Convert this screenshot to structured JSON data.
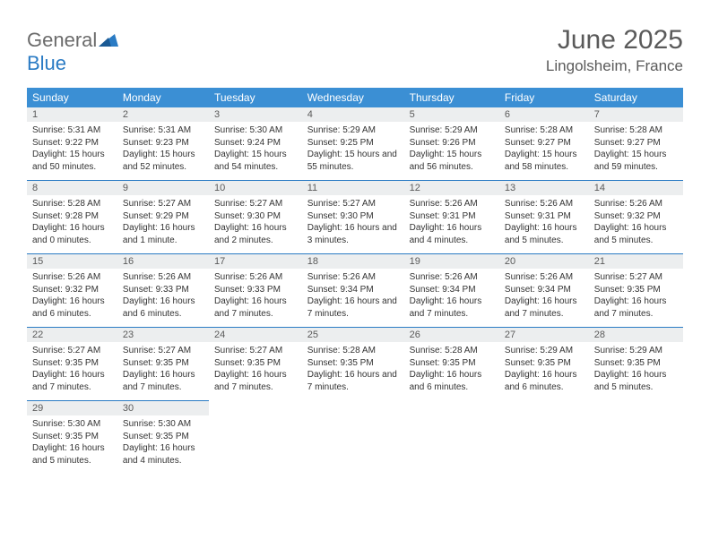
{
  "logo": {
    "part1": "General",
    "part2": "Blue"
  },
  "title": "June 2025",
  "location": "Lingolsheim, France",
  "colors": {
    "header_bg": "#3b8fd4",
    "header_text": "#ffffff",
    "daynum_bg": "#eceeef",
    "border": "#2a7bc4",
    "text": "#333333",
    "title_text": "#5a5a5a",
    "logo_gray": "#6b6b6b",
    "logo_blue": "#2a7bc4"
  },
  "day_headers": [
    "Sunday",
    "Monday",
    "Tuesday",
    "Wednesday",
    "Thursday",
    "Friday",
    "Saturday"
  ],
  "weeks": [
    [
      {
        "day": "1",
        "sunrise": "Sunrise: 5:31 AM",
        "sunset": "Sunset: 9:22 PM",
        "daylight": "Daylight: 15 hours and 50 minutes."
      },
      {
        "day": "2",
        "sunrise": "Sunrise: 5:31 AM",
        "sunset": "Sunset: 9:23 PM",
        "daylight": "Daylight: 15 hours and 52 minutes."
      },
      {
        "day": "3",
        "sunrise": "Sunrise: 5:30 AM",
        "sunset": "Sunset: 9:24 PM",
        "daylight": "Daylight: 15 hours and 54 minutes."
      },
      {
        "day": "4",
        "sunrise": "Sunrise: 5:29 AM",
        "sunset": "Sunset: 9:25 PM",
        "daylight": "Daylight: 15 hours and 55 minutes."
      },
      {
        "day": "5",
        "sunrise": "Sunrise: 5:29 AM",
        "sunset": "Sunset: 9:26 PM",
        "daylight": "Daylight: 15 hours and 56 minutes."
      },
      {
        "day": "6",
        "sunrise": "Sunrise: 5:28 AM",
        "sunset": "Sunset: 9:27 PM",
        "daylight": "Daylight: 15 hours and 58 minutes."
      },
      {
        "day": "7",
        "sunrise": "Sunrise: 5:28 AM",
        "sunset": "Sunset: 9:27 PM",
        "daylight": "Daylight: 15 hours and 59 minutes."
      }
    ],
    [
      {
        "day": "8",
        "sunrise": "Sunrise: 5:28 AM",
        "sunset": "Sunset: 9:28 PM",
        "daylight": "Daylight: 16 hours and 0 minutes."
      },
      {
        "day": "9",
        "sunrise": "Sunrise: 5:27 AM",
        "sunset": "Sunset: 9:29 PM",
        "daylight": "Daylight: 16 hours and 1 minute."
      },
      {
        "day": "10",
        "sunrise": "Sunrise: 5:27 AM",
        "sunset": "Sunset: 9:30 PM",
        "daylight": "Daylight: 16 hours and 2 minutes."
      },
      {
        "day": "11",
        "sunrise": "Sunrise: 5:27 AM",
        "sunset": "Sunset: 9:30 PM",
        "daylight": "Daylight: 16 hours and 3 minutes."
      },
      {
        "day": "12",
        "sunrise": "Sunrise: 5:26 AM",
        "sunset": "Sunset: 9:31 PM",
        "daylight": "Daylight: 16 hours and 4 minutes."
      },
      {
        "day": "13",
        "sunrise": "Sunrise: 5:26 AM",
        "sunset": "Sunset: 9:31 PM",
        "daylight": "Daylight: 16 hours and 5 minutes."
      },
      {
        "day": "14",
        "sunrise": "Sunrise: 5:26 AM",
        "sunset": "Sunset: 9:32 PM",
        "daylight": "Daylight: 16 hours and 5 minutes."
      }
    ],
    [
      {
        "day": "15",
        "sunrise": "Sunrise: 5:26 AM",
        "sunset": "Sunset: 9:32 PM",
        "daylight": "Daylight: 16 hours and 6 minutes."
      },
      {
        "day": "16",
        "sunrise": "Sunrise: 5:26 AM",
        "sunset": "Sunset: 9:33 PM",
        "daylight": "Daylight: 16 hours and 6 minutes."
      },
      {
        "day": "17",
        "sunrise": "Sunrise: 5:26 AM",
        "sunset": "Sunset: 9:33 PM",
        "daylight": "Daylight: 16 hours and 7 minutes."
      },
      {
        "day": "18",
        "sunrise": "Sunrise: 5:26 AM",
        "sunset": "Sunset: 9:34 PM",
        "daylight": "Daylight: 16 hours and 7 minutes."
      },
      {
        "day": "19",
        "sunrise": "Sunrise: 5:26 AM",
        "sunset": "Sunset: 9:34 PM",
        "daylight": "Daylight: 16 hours and 7 minutes."
      },
      {
        "day": "20",
        "sunrise": "Sunrise: 5:26 AM",
        "sunset": "Sunset: 9:34 PM",
        "daylight": "Daylight: 16 hours and 7 minutes."
      },
      {
        "day": "21",
        "sunrise": "Sunrise: 5:27 AM",
        "sunset": "Sunset: 9:35 PM",
        "daylight": "Daylight: 16 hours and 7 minutes."
      }
    ],
    [
      {
        "day": "22",
        "sunrise": "Sunrise: 5:27 AM",
        "sunset": "Sunset: 9:35 PM",
        "daylight": "Daylight: 16 hours and 7 minutes."
      },
      {
        "day": "23",
        "sunrise": "Sunrise: 5:27 AM",
        "sunset": "Sunset: 9:35 PM",
        "daylight": "Daylight: 16 hours and 7 minutes."
      },
      {
        "day": "24",
        "sunrise": "Sunrise: 5:27 AM",
        "sunset": "Sunset: 9:35 PM",
        "daylight": "Daylight: 16 hours and 7 minutes."
      },
      {
        "day": "25",
        "sunrise": "Sunrise: 5:28 AM",
        "sunset": "Sunset: 9:35 PM",
        "daylight": "Daylight: 16 hours and 7 minutes."
      },
      {
        "day": "26",
        "sunrise": "Sunrise: 5:28 AM",
        "sunset": "Sunset: 9:35 PM",
        "daylight": "Daylight: 16 hours and 6 minutes."
      },
      {
        "day": "27",
        "sunrise": "Sunrise: 5:29 AM",
        "sunset": "Sunset: 9:35 PM",
        "daylight": "Daylight: 16 hours and 6 minutes."
      },
      {
        "day": "28",
        "sunrise": "Sunrise: 5:29 AM",
        "sunset": "Sunset: 9:35 PM",
        "daylight": "Daylight: 16 hours and 5 minutes."
      }
    ],
    [
      {
        "day": "29",
        "sunrise": "Sunrise: 5:30 AM",
        "sunset": "Sunset: 9:35 PM",
        "daylight": "Daylight: 16 hours and 5 minutes."
      },
      {
        "day": "30",
        "sunrise": "Sunrise: 5:30 AM",
        "sunset": "Sunset: 9:35 PM",
        "daylight": "Daylight: 16 hours and 4 minutes."
      },
      null,
      null,
      null,
      null,
      null
    ]
  ]
}
